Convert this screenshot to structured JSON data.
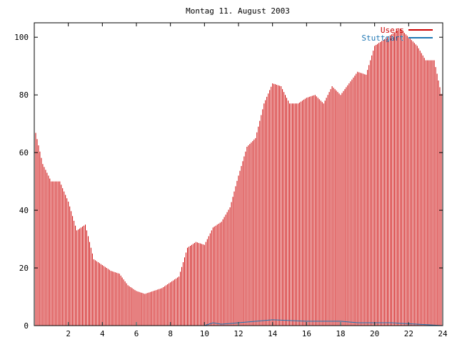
{
  "chart_data": {
    "type": "bar",
    "title": "Montag 11. August 2003",
    "xlabel": "",
    "ylabel": "",
    "xlim": [
      0,
      24
    ],
    "ylim": [
      0,
      105
    ],
    "x_ticks": [
      2,
      4,
      6,
      8,
      10,
      12,
      14,
      16,
      18,
      20,
      22,
      24
    ],
    "y_ticks": [
      0,
      20,
      40,
      60,
      80,
      100
    ],
    "grid": false,
    "legend_position": "top-right",
    "colors": {
      "users": "#cc0000",
      "stuttgart": "#1f77b4"
    },
    "series": [
      {
        "name": "Users",
        "x": [
          0,
          0.5,
          1,
          1.5,
          2,
          2.5,
          3,
          3.5,
          4,
          4.5,
          5,
          5.5,
          6,
          6.5,
          7,
          7.5,
          8,
          8.5,
          9,
          9.5,
          10,
          10.5,
          11,
          11.5,
          12,
          12.5,
          13,
          13.5,
          14,
          14.5,
          15,
          15.5,
          16,
          16.5,
          17,
          17.5,
          18,
          18.5,
          19,
          19.5,
          20,
          20.5,
          21,
          21.5,
          22,
          22.5,
          23,
          23.5,
          24
        ],
        "values": [
          69,
          56,
          50,
          50,
          43,
          33,
          35,
          23,
          21,
          19,
          18,
          14,
          12,
          11,
          12,
          13,
          15,
          17,
          27,
          29,
          28,
          34,
          36,
          41,
          52,
          62,
          65,
          77,
          84,
          83,
          77,
          77,
          79,
          80,
          77,
          83,
          80,
          84,
          88,
          87,
          97,
          99,
          101,
          103,
          100,
          97,
          92,
          92,
          78
        ]
      },
      {
        "name": "Stuttgart",
        "x": [
          0,
          10,
          10.5,
          11,
          12,
          14,
          16,
          18,
          19,
          20,
          21,
          24
        ],
        "values": [
          0,
          0,
          1,
          0.5,
          1,
          2,
          1.5,
          1.5,
          1,
          1,
          1,
          0
        ]
      }
    ]
  }
}
